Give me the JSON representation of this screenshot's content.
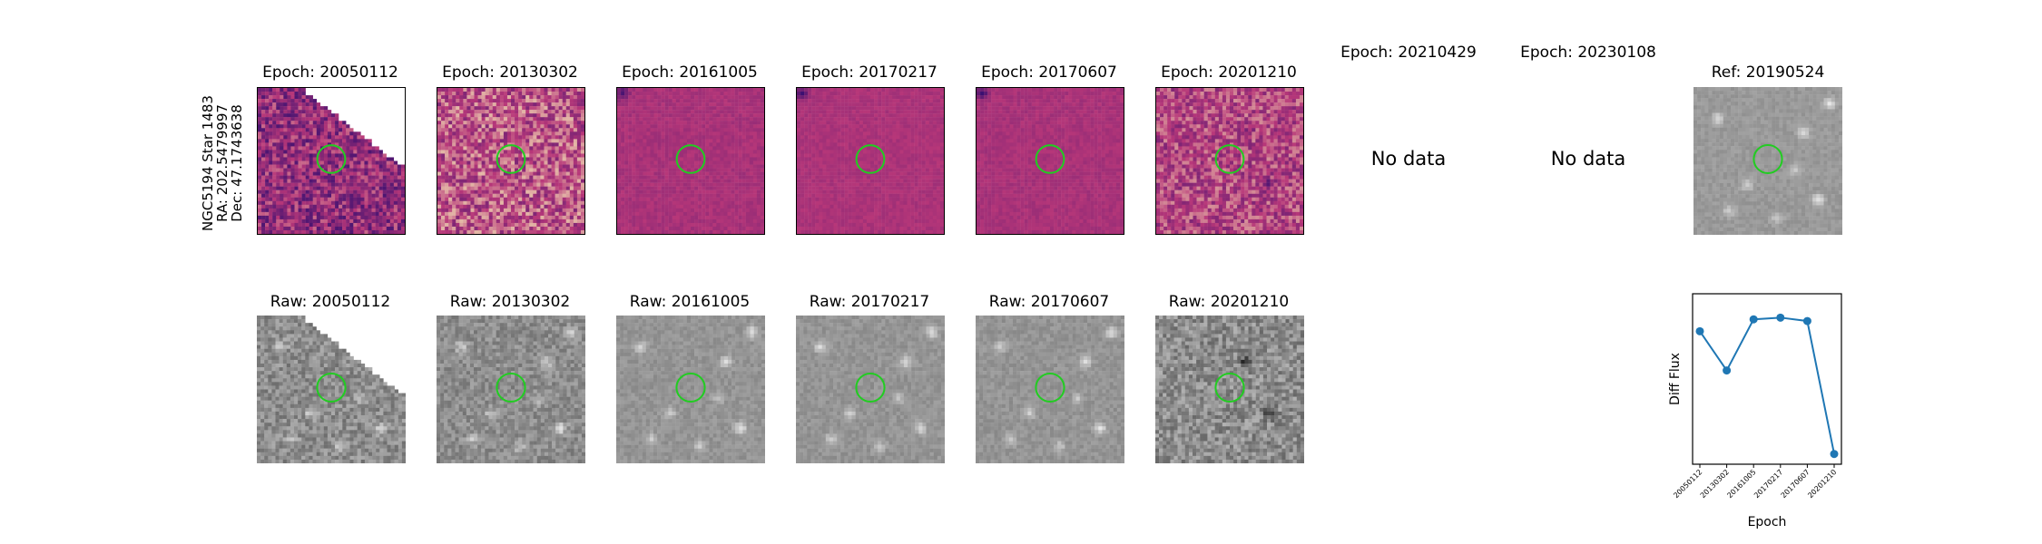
{
  "row_label": {
    "line1": "NGC5194 Star 1483",
    "line2": "RA: 202.5479997",
    "line3": "Dec: 47.1743638"
  },
  "top_row": [
    {
      "title": "Epoch: 20050112",
      "has_data": true
    },
    {
      "title": "Epoch: 20130302",
      "has_data": true
    },
    {
      "title": "Epoch: 20161005",
      "has_data": true
    },
    {
      "title": "Epoch: 20170217",
      "has_data": true
    },
    {
      "title": "Epoch: 20170607",
      "has_data": true
    },
    {
      "title": "Epoch: 20201210",
      "has_data": true
    },
    {
      "title": "Epoch: 20210429",
      "has_data": false,
      "message": "No data"
    },
    {
      "title": "Epoch: 20230108",
      "has_data": false,
      "message": "No data"
    },
    {
      "title": "Ref: 20190524",
      "has_data": true
    }
  ],
  "bottom_row": [
    {
      "title": "Raw: 20050112"
    },
    {
      "title": "Raw: 20130302"
    },
    {
      "title": "Raw: 20161005"
    },
    {
      "title": "Raw: 20170217"
    },
    {
      "title": "Raw: 20170607"
    },
    {
      "title": "Raw: 20201210"
    }
  ],
  "colors": {
    "circle": "#22cc22",
    "line": "#1f77b4",
    "magma_low": "#3b0f70",
    "magma_mid": "#b73779",
    "magma_high": "#fcfdbf"
  },
  "chart_data": {
    "type": "line",
    "xlabel": "Epoch",
    "ylabel": "Diff Flux",
    "categories": [
      "20050112",
      "20130302",
      "20161005",
      "20170217",
      "20170607",
      "20201210"
    ],
    "values": [
      0.78,
      0.55,
      0.85,
      0.86,
      0.84,
      0.06
    ],
    "ylim": [
      0,
      1
    ],
    "yticks_shown": false,
    "grid": false
  }
}
